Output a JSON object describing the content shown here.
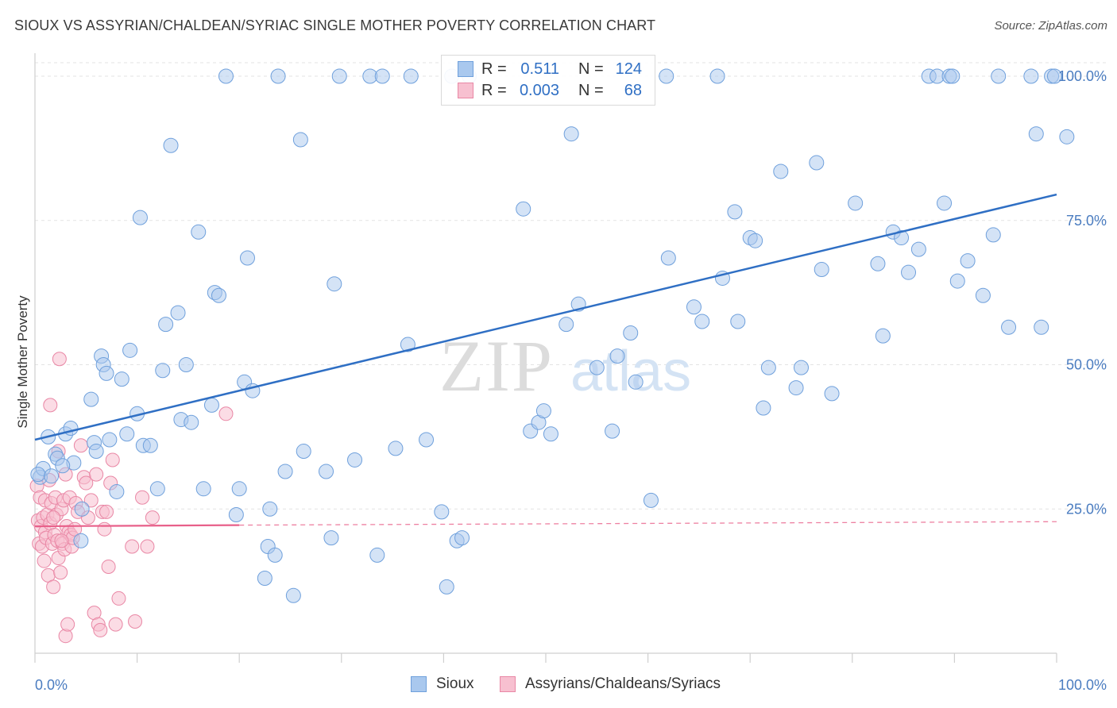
{
  "title": "SIOUX VS ASSYRIAN/CHALDEAN/SYRIAC SINGLE MOTHER POVERTY CORRELATION CHART",
  "source": "Source: ZipAtlas.com",
  "watermark": {
    "zip": "ZIP",
    "atlas": "atlas"
  },
  "legend": {
    "rows": [
      {
        "r_label": "R =",
        "r_value": "0.511",
        "n_label": "N =",
        "n_value": "124",
        "color": "#a9c8ee",
        "border": "#6fa0dc"
      },
      {
        "r_label": "R =",
        "r_value": "0.003",
        "n_label": "N =",
        "n_value": "68",
        "color": "#f7c0d0",
        "border": "#e987a5"
      }
    ]
  },
  "bottom_legend": [
    {
      "label": "Sioux",
      "color": "#a9c8ee",
      "border": "#6fa0dc"
    },
    {
      "label": "Assyrians/Chaldeans/Syriacs",
      "color": "#f7c0d0",
      "border": "#e987a5"
    }
  ],
  "chart_data": {
    "type": "scatter",
    "title": "SIOUX VS ASSYRIAN/CHALDEAN/SYRIAC SINGLE MOTHER POVERTY CORRELATION CHART",
    "xlabel": "",
    "ylabel": "Single Mother Poverty",
    "xlim": [
      0,
      100
    ],
    "ylim": [
      0,
      100
    ],
    "x_tick_labels": [
      "0.0%",
      "100.0%"
    ],
    "y_tick_labels": [
      "25.0%",
      "50.0%",
      "75.0%",
      "100.0%"
    ],
    "y_ticks": [
      25,
      50,
      75,
      100
    ],
    "grid": true,
    "legend_position": "top-center",
    "colors": {
      "sioux_fill": "#a9c8ee",
      "sioux_stroke": "#6fa0dc",
      "sioux_line": "#2f6fc4",
      "assyrian_fill": "#f7c0d0",
      "assyrian_stroke": "#e987a5",
      "assyrian_line": "#e8608a"
    },
    "series": [
      {
        "name": "Sioux",
        "trend": {
          "x": [
            0,
            100
          ],
          "y": [
            37,
            79.5
          ]
        },
        "points": [
          [
            0.5,
            30.5
          ],
          [
            0.8,
            32
          ],
          [
            1.3,
            37.5
          ],
          [
            2.0,
            34.5
          ],
          [
            2.2,
            33.8
          ],
          [
            3.0,
            38
          ],
          [
            3.5,
            39
          ],
          [
            3.8,
            33
          ],
          [
            4.5,
            19.5
          ],
          [
            4.6,
            25
          ],
          [
            5.5,
            44
          ],
          [
            5.8,
            36.5
          ],
          [
            6.5,
            51.5
          ],
          [
            6.7,
            50
          ],
          [
            7.0,
            48.5
          ],
          [
            7.3,
            37
          ],
          [
            8.0,
            28
          ],
          [
            8.5,
            47.5
          ],
          [
            9.0,
            38
          ],
          [
            9.3,
            52.5
          ],
          [
            10.0,
            41.5
          ],
          [
            10.3,
            75.5
          ],
          [
            10.6,
            36
          ],
          [
            11.3,
            36
          ],
          [
            12.0,
            28.5
          ],
          [
            12.5,
            49
          ],
          [
            12.8,
            57
          ],
          [
            13.3,
            88
          ],
          [
            14.0,
            59
          ],
          [
            14.3,
            40.5
          ],
          [
            14.8,
            50
          ],
          [
            15.3,
            40
          ],
          [
            16.0,
            73
          ],
          [
            16.5,
            28.5
          ],
          [
            17.3,
            43
          ],
          [
            17.6,
            62.5
          ],
          [
            18.0,
            62
          ],
          [
            18.7,
            100
          ],
          [
            19.7,
            24
          ],
          [
            20.0,
            28.5
          ],
          [
            20.5,
            47
          ],
          [
            20.8,
            68.5
          ],
          [
            21.3,
            45.5
          ],
          [
            22.8,
            18.5
          ],
          [
            22.5,
            13
          ],
          [
            23.0,
            25
          ],
          [
            23.5,
            17
          ],
          [
            23.8,
            100
          ],
          [
            24.5,
            31.5
          ],
          [
            25.3,
            10
          ],
          [
            26.0,
            89
          ],
          [
            26.3,
            35
          ],
          [
            28.5,
            31.5
          ],
          [
            29.0,
            20
          ],
          [
            29.3,
            64
          ],
          [
            29.8,
            100
          ],
          [
            31.3,
            33.5
          ],
          [
            32.8,
            100
          ],
          [
            33.5,
            17
          ],
          [
            34.0,
            100
          ],
          [
            35.3,
            35.5
          ],
          [
            36.5,
            53.5
          ],
          [
            36.8,
            100
          ],
          [
            38.3,
            37
          ],
          [
            39.8,
            24.5
          ],
          [
            40.3,
            11.5
          ],
          [
            40.8,
            100
          ],
          [
            41.3,
            19.5
          ],
          [
            41.8,
            20
          ],
          [
            42.5,
            100
          ],
          [
            47.8,
            77
          ],
          [
            48.5,
            38.5
          ],
          [
            49.3,
            40
          ],
          [
            49.8,
            42
          ],
          [
            50.5,
            38
          ],
          [
            52.0,
            57
          ],
          [
            52.5,
            90
          ],
          [
            53.2,
            60.5
          ],
          [
            55.0,
            49.5
          ],
          [
            56.5,
            38.5
          ],
          [
            57.0,
            51.5
          ],
          [
            58.3,
            55.5
          ],
          [
            58.8,
            47
          ],
          [
            60.3,
            26.5
          ],
          [
            61.8,
            100
          ],
          [
            62.0,
            68.5
          ],
          [
            64.5,
            60
          ],
          [
            65.3,
            57.5
          ],
          [
            66.8,
            100
          ],
          [
            67.3,
            65
          ],
          [
            68.8,
            57.5
          ],
          [
            68.5,
            76.5
          ],
          [
            70.0,
            72
          ],
          [
            70.5,
            71.5
          ],
          [
            71.3,
            42.5
          ],
          [
            71.8,
            49.5
          ],
          [
            73.0,
            83.5
          ],
          [
            74.5,
            46
          ],
          [
            75.0,
            49.5
          ],
          [
            76.5,
            85
          ],
          [
            77.0,
            66.5
          ],
          [
            78.0,
            45
          ],
          [
            80.3,
            78
          ],
          [
            82.5,
            67.5
          ],
          [
            83.0,
            55
          ],
          [
            84.0,
            73
          ],
          [
            84.8,
            72
          ],
          [
            85.5,
            66
          ],
          [
            86.5,
            70
          ],
          [
            87.5,
            100
          ],
          [
            88.3,
            100
          ],
          [
            89.0,
            78
          ],
          [
            89.5,
            100
          ],
          [
            89.8,
            100
          ],
          [
            90.3,
            64.5
          ],
          [
            91.3,
            68
          ],
          [
            92.8,
            62
          ],
          [
            93.8,
            72.5
          ],
          [
            94.3,
            100
          ],
          [
            95.3,
            56.5
          ],
          [
            97.5,
            100
          ],
          [
            98.0,
            90
          ],
          [
            98.5,
            56.5
          ],
          [
            99.5,
            100
          ],
          [
            99.8,
            100
          ],
          [
            101.0,
            89.5
          ],
          [
            0.3,
            31
          ],
          [
            1.6,
            30.7
          ],
          [
            2.7,
            32.5
          ],
          [
            6.0,
            35
          ]
        ]
      },
      {
        "name": "Assyrians/Chaldeans/Syriacs",
        "trend": {
          "x": [
            0,
            20
          ],
          "y": [
            22,
            22.2
          ]
        },
        "trend_extension": {
          "x": [
            20,
            100
          ],
          "y": [
            22.2,
            22.8
          ]
        },
        "points": [
          [
            0.2,
            29
          ],
          [
            0.3,
            23
          ],
          [
            0.4,
            19
          ],
          [
            0.5,
            27
          ],
          [
            0.6,
            22
          ],
          [
            0.7,
            18.5
          ],
          [
            0.8,
            23.5
          ],
          [
            0.9,
            16
          ],
          [
            1.0,
            21
          ],
          [
            1.0,
            26.5
          ],
          [
            1.1,
            20
          ],
          [
            1.2,
            24
          ],
          [
            1.3,
            13.5
          ],
          [
            1.4,
            30
          ],
          [
            1.5,
            22.5
          ],
          [
            1.5,
            43
          ],
          [
            1.6,
            26
          ],
          [
            1.7,
            19
          ],
          [
            1.8,
            11.5
          ],
          [
            1.9,
            20.5
          ],
          [
            2.0,
            27
          ],
          [
            2.1,
            24
          ],
          [
            2.2,
            19.5
          ],
          [
            2.3,
            16.5
          ],
          [
            2.3,
            35
          ],
          [
            2.4,
            51
          ],
          [
            2.5,
            14
          ],
          [
            2.6,
            25
          ],
          [
            2.7,
            19
          ],
          [
            2.8,
            26.5
          ],
          [
            2.9,
            18
          ],
          [
            3.0,
            31
          ],
          [
            3.0,
            3
          ],
          [
            3.1,
            22
          ],
          [
            3.2,
            5
          ],
          [
            3.3,
            21
          ],
          [
            3.4,
            27
          ],
          [
            3.5,
            20.5
          ],
          [
            3.6,
            18.5
          ],
          [
            3.7,
            20
          ],
          [
            4.0,
            26
          ],
          [
            4.2,
            24.5
          ],
          [
            4.5,
            36
          ],
          [
            4.8,
            30.5
          ],
          [
            5.0,
            29.5
          ],
          [
            5.2,
            23.5
          ],
          [
            5.5,
            26.5
          ],
          [
            5.8,
            7
          ],
          [
            6.0,
            31
          ],
          [
            6.2,
            5
          ],
          [
            6.4,
            4
          ],
          [
            6.6,
            24.5
          ],
          [
            6.8,
            21.5
          ],
          [
            7.0,
            24.5
          ],
          [
            7.2,
            15
          ],
          [
            7.4,
            29.5
          ],
          [
            7.6,
            33.5
          ],
          [
            7.9,
            5
          ],
          [
            8.2,
            9.5
          ],
          [
            9.5,
            18.5
          ],
          [
            9.8,
            5.5
          ],
          [
            10.5,
            27
          ],
          [
            11.0,
            18.5
          ],
          [
            11.5,
            23.5
          ],
          [
            18.7,
            41.5
          ],
          [
            1.8,
            23.5
          ],
          [
            2.6,
            19.5
          ],
          [
            3.9,
            21.5
          ]
        ]
      }
    ]
  }
}
